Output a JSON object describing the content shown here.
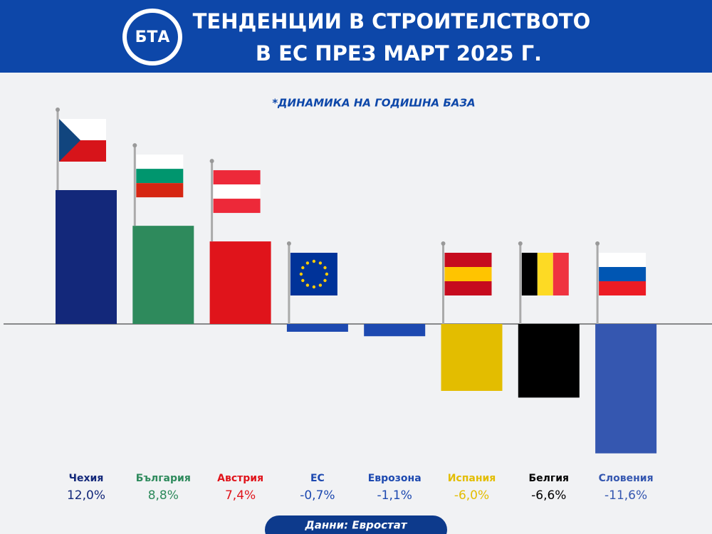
{
  "logo": "БТА",
  "chart_data": {
    "type": "bar",
    "title": [
      "ТЕНДЕНЦИИ В СТРОИТЕЛСТВОТО",
      "В ЕС ПРЕЗ МАРТ 2025 Г."
    ],
    "subtitle": "*ДИНАМИКА НА ГОДИШНА БАЗА",
    "categories": [
      "Чехия",
      "България",
      "Австрия",
      "ЕС",
      "Еврозона",
      "Испания",
      "Белгия",
      "Словения"
    ],
    "values": [
      12.0,
      8.8,
      7.4,
      -0.7,
      -1.1,
      -6.0,
      -6.6,
      -11.6
    ],
    "value_labels": [
      "12,0%",
      "8,8%",
      "7,4%",
      "-0,7%",
      "-1,1%",
      "-6,0%",
      "-6,6%",
      "-11,6%"
    ],
    "colors": [
      "#13287a",
      "#2e8a5c",
      "#e0141b",
      "#1d49b0",
      "#1d49b0",
      "#e3bd00",
      "#000000",
      "#3557b0"
    ],
    "source": "Данни: Евростат"
  }
}
